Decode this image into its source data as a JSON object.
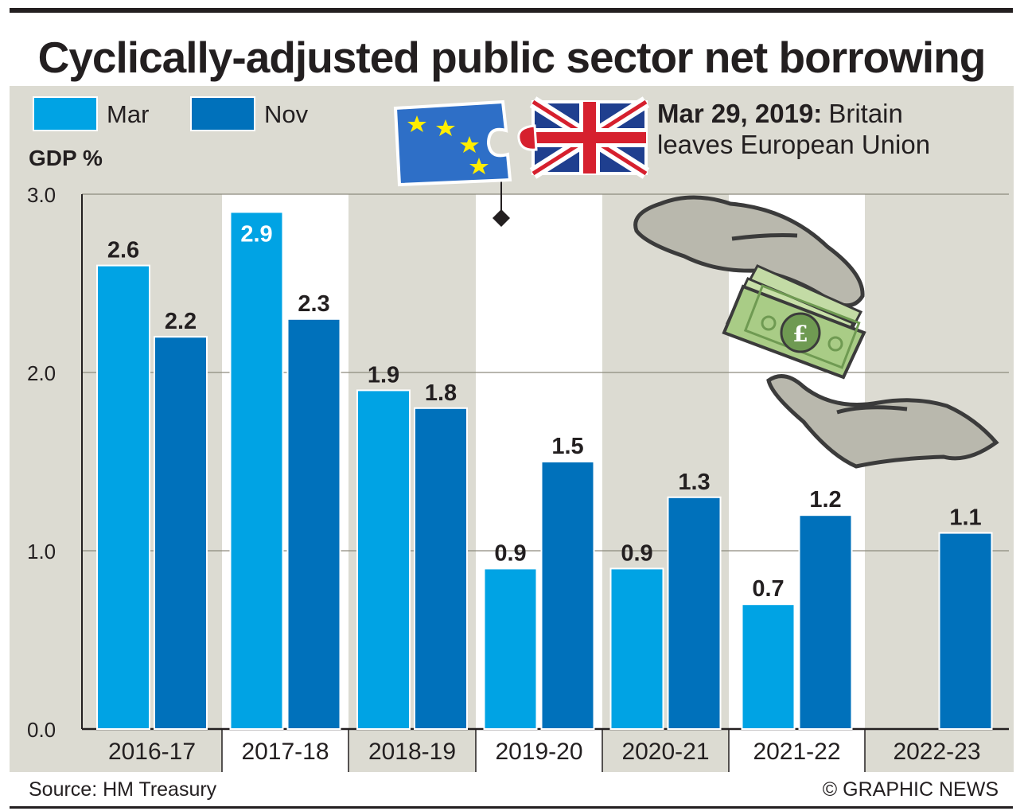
{
  "title": "Cyclically-adjusted public sector net borrowing",
  "source": "Source: HM Treasury",
  "credit": "© GRAPHIC NEWS",
  "annotation": {
    "date": "Mar 29, 2019:",
    "line1": "Britain",
    "line2": "leaves European Union"
  },
  "chart_data": {
    "type": "bar",
    "ylabel": "GDP %",
    "ylim": [
      0,
      3.0
    ],
    "yticks": [
      "0.0",
      "1.0",
      "2.0",
      "3.0"
    ],
    "categories": [
      "2016-17",
      "2017-18",
      "2018-19",
      "2019-20",
      "2020-21",
      "2021-22",
      "2022-23"
    ],
    "series": [
      {
        "name": "Mar",
        "color": "#00a3e4",
        "values": [
          2.6,
          2.9,
          1.9,
          0.9,
          0.9,
          0.7,
          null
        ],
        "labels": [
          "2.6",
          "2.9",
          "1.9",
          "0.9",
          "0.9",
          "0.7",
          ""
        ]
      },
      {
        "name": "Nov",
        "color": "#0071bb",
        "values": [
          2.2,
          2.3,
          1.8,
          1.5,
          1.3,
          1.2,
          1.1
        ],
        "labels": [
          "2.2",
          "2.3",
          "1.8",
          "1.5",
          "1.3",
          "1.2",
          "1.1"
        ]
      }
    ],
    "grid": true,
    "legend": "top-left",
    "icons": [
      "eu-flag-puzzle-icon",
      "union-jack-puzzle-icon",
      "hands-giving-money-icon",
      "pound-banknote-icon"
    ]
  }
}
